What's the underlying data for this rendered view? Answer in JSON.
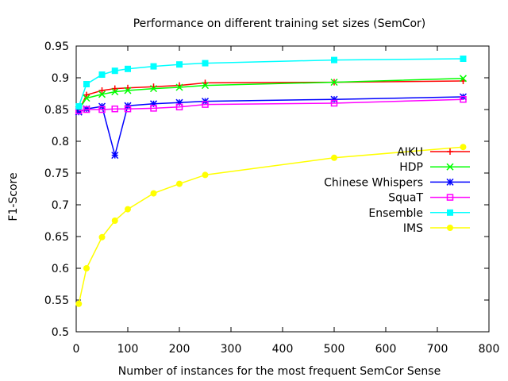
{
  "chart_data": {
    "type": "line",
    "title": "Performance on different training set sizes (SemCor)",
    "xlabel": "Number of instances for the most frequent SemCor Sense",
    "ylabel": "F1-Score",
    "xlim": [
      0,
      800
    ],
    "ylim": [
      0.5,
      0.95
    ],
    "x_ticks": [
      0,
      100,
      200,
      300,
      400,
      500,
      600,
      700,
      800
    ],
    "x_tick_labels": [
      "0",
      "100",
      "200",
      "300",
      "400",
      "500",
      "600",
      "700",
      "800"
    ],
    "y_ticks": [
      0.5,
      0.55,
      0.6,
      0.65,
      0.7,
      0.75,
      0.8,
      0.85,
      0.9,
      0.95
    ],
    "y_tick_labels": [
      "0.5",
      "0.55",
      "0.6",
      "0.65",
      "0.7",
      "0.75",
      "0.8",
      "0.85",
      "0.9",
      "0.95"
    ],
    "grid": false,
    "legend_position": "right",
    "x": [
      5,
      20,
      50,
      75,
      100,
      150,
      200,
      250,
      500,
      750
    ],
    "series": [
      {
        "name": "AIKU",
        "color": "#ff0000",
        "marker": "plus",
        "values": [
          0.848,
          0.873,
          0.88,
          0.883,
          0.884,
          0.886,
          0.888,
          0.892,
          0.893,
          0.895
        ]
      },
      {
        "name": "HDP",
        "color": "#00ff00",
        "marker": "cross",
        "values": [
          0.85,
          0.868,
          0.874,
          0.878,
          0.88,
          0.883,
          0.885,
          0.888,
          0.893,
          0.899
        ]
      },
      {
        "name": "Chinese Whispers",
        "color": "#0000ff",
        "marker": "star",
        "values": [
          0.846,
          0.851,
          0.855,
          0.778,
          0.856,
          0.859,
          0.861,
          0.863,
          0.866,
          0.87
        ]
      },
      {
        "name": "SquaT",
        "color": "#ff00ff",
        "marker": "box",
        "values": [
          0.848,
          0.85,
          0.85,
          0.851,
          0.851,
          0.852,
          0.854,
          0.858,
          0.86,
          0.866
        ]
      },
      {
        "name": "Ensemble",
        "color": "#00ffff",
        "marker": "filled-box",
        "values": [
          0.855,
          0.89,
          0.905,
          0.911,
          0.914,
          0.918,
          0.921,
          0.923,
          0.928,
          0.93
        ]
      },
      {
        "name": "IMS",
        "color": "#ffff00",
        "marker": "filled-circle",
        "values": [
          0.544,
          0.6,
          0.649,
          0.675,
          0.693,
          0.718,
          0.733,
          0.747,
          0.774,
          0.791
        ]
      }
    ]
  }
}
